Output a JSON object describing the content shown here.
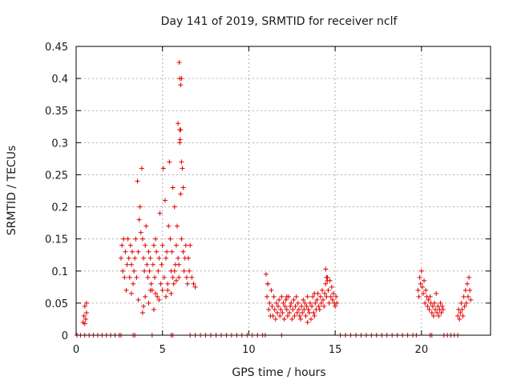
{
  "chart_data": {
    "type": "scatter",
    "title": "Day 141 of 2019, SRMTID for receiver nclf",
    "xlabel": "GPS time / hours",
    "ylabel": "SRMTID / TECUs",
    "xlim": [
      0,
      24
    ],
    "ylim": [
      0,
      0.45
    ],
    "xticks": [
      0,
      5,
      10,
      15,
      20
    ],
    "yticks": [
      0,
      0.05,
      0.1,
      0.15,
      0.2,
      0.25,
      0.3,
      0.35,
      0.4,
      0.45
    ],
    "xtick_labels": [
      "0",
      "5",
      "10",
      "15",
      "20"
    ],
    "ytick_labels": [
      "0",
      "0.05",
      "0.1",
      "0.15",
      "0.2",
      "0.25",
      "0.3",
      "0.35",
      "0.4",
      "0.45"
    ],
    "grid": true,
    "marker": "plus",
    "color": "#e00000",
    "series": [
      {
        "x": [
          0.4,
          0.45,
          0.5,
          0.5,
          0.55,
          0.6,
          0.6,
          2.6,
          2.65,
          2.7,
          2.75,
          2.8,
          2.85,
          2.9,
          2.95,
          3.0,
          3.05,
          3.1,
          3.15,
          3.2,
          3.25,
          3.3,
          3.35,
          3.4,
          3.45,
          3.5,
          3.55,
          3.6,
          3.65,
          3.7,
          3.75,
          3.8,
          3.85,
          3.9,
          3.95,
          4.0,
          4.05,
          4.1,
          4.15,
          4.2,
          4.25,
          4.3,
          4.35,
          4.4,
          4.45,
          4.5,
          4.55,
          4.6,
          4.65,
          4.7,
          4.75,
          4.8,
          4.85,
          4.9,
          4.95,
          5.0,
          5.05,
          5.1,
          5.15,
          5.2,
          5.25,
          5.3,
          5.35,
          5.4,
          5.45,
          5.5,
          5.55,
          5.6,
          5.65,
          5.7,
          5.75,
          5.8,
          5.85,
          5.9,
          5.95,
          6.0,
          6.05,
          6.1,
          6.15,
          6.2,
          6.25,
          6.3,
          6.35,
          6.4,
          6.45,
          6.5,
          6.55,
          6.6,
          6.7,
          6.8,
          6.9,
          3.2,
          3.6,
          3.85,
          3.9,
          4.0,
          4.2,
          4.3,
          4.5,
          4.6,
          4.8,
          5.0,
          5.2,
          5.3,
          5.5,
          5.6,
          5.7,
          5.8,
          5.95,
          6.0,
          6.05,
          6.1,
          6.2,
          5.97,
          6.0,
          6.05,
          6.1,
          5.9,
          6.02,
          11.0,
          11.05,
          11.1,
          11.15,
          11.2,
          11.25,
          11.3,
          11.35,
          11.4,
          11.45,
          11.5,
          11.55,
          11.6,
          11.65,
          11.7,
          11.75,
          11.8,
          11.85,
          11.9,
          11.95,
          12.0,
          12.05,
          12.1,
          12.15,
          12.2,
          12.25,
          12.3,
          12.35,
          12.4,
          12.45,
          12.5,
          12.55,
          12.6,
          12.65,
          12.7,
          12.75,
          12.8,
          12.85,
          12.9,
          12.95,
          13.0,
          13.05,
          13.1,
          13.15,
          13.2,
          13.25,
          13.3,
          13.35,
          13.4,
          13.45,
          13.5,
          13.55,
          13.6,
          13.65,
          13.7,
          13.75,
          13.8,
          13.85,
          13.9,
          13.95,
          14.0,
          14.05,
          14.1,
          14.15,
          14.2,
          14.25,
          14.3,
          14.35,
          14.4,
          14.45,
          14.5,
          14.55,
          14.6,
          14.65,
          14.7,
          14.75,
          14.8,
          14.85,
          14.9,
          14.95,
          15.0,
          15.05,
          15.1,
          14.45,
          14.5,
          14.55,
          13.8,
          13.4,
          12.2,
          11.1,
          19.8,
          19.85,
          19.9,
          19.95,
          20.0,
          20.05,
          20.1,
          20.15,
          20.2,
          20.25,
          20.3,
          20.35,
          20.4,
          20.45,
          20.5,
          20.55,
          20.6,
          20.65,
          20.7,
          20.75,
          20.8,
          20.85,
          20.9,
          20.95,
          21.0,
          21.05,
          21.1,
          21.15,
          21.2,
          21.25,
          22.1,
          22.15,
          22.2,
          22.25,
          22.3,
          22.35,
          22.4,
          22.45,
          22.5,
          22.55,
          22.6,
          22.65,
          22.7,
          22.75,
          22.8,
          22.85
        ],
        "y": [
          0.02,
          0.03,
          0.045,
          0.018,
          0.025,
          0.035,
          0.05,
          0.12,
          0.14,
          0.1,
          0.15,
          0.09,
          0.13,
          0.07,
          0.11,
          0.15,
          0.12,
          0.09,
          0.14,
          0.11,
          0.13,
          0.08,
          0.1,
          0.12,
          0.15,
          0.09,
          0.24,
          0.13,
          0.18,
          0.2,
          0.16,
          0.26,
          0.15,
          0.12,
          0.1,
          0.14,
          0.17,
          0.11,
          0.09,
          0.13,
          0.1,
          0.12,
          0.08,
          0.07,
          0.11,
          0.14,
          0.09,
          0.15,
          0.13,
          0.06,
          0.1,
          0.12,
          0.19,
          0.08,
          0.11,
          0.14,
          0.26,
          0.09,
          0.21,
          0.12,
          0.13,
          0.07,
          0.17,
          0.27,
          0.15,
          0.1,
          0.13,
          0.23,
          0.08,
          0.2,
          0.11,
          0.14,
          0.17,
          0.12,
          0.09,
          0.32,
          0.22,
          0.15,
          0.26,
          0.13,
          0.1,
          0.12,
          0.14,
          0.09,
          0.08,
          0.12,
          0.1,
          0.14,
          0.09,
          0.08,
          0.075,
          0.065,
          0.055,
          0.035,
          0.045,
          0.06,
          0.05,
          0.07,
          0.04,
          0.065,
          0.055,
          0.07,
          0.06,
          0.08,
          0.065,
          0.09,
          0.1,
          0.085,
          0.11,
          0.3,
          0.32,
          0.27,
          0.23,
          0.425,
          0.4,
          0.39,
          0.4,
          0.33,
          0.305,
          0.095,
          0.06,
          0.08,
          0.04,
          0.05,
          0.03,
          0.07,
          0.045,
          0.03,
          0.06,
          0.04,
          0.025,
          0.05,
          0.035,
          0.045,
          0.055,
          0.03,
          0.04,
          0.06,
          0.035,
          0.05,
          0.025,
          0.045,
          0.055,
          0.04,
          0.03,
          0.06,
          0.035,
          0.045,
          0.05,
          0.025,
          0.04,
          0.055,
          0.03,
          0.045,
          0.06,
          0.035,
          0.05,
          0.04,
          0.03,
          0.025,
          0.045,
          0.035,
          0.055,
          0.04,
          0.05,
          0.03,
          0.045,
          0.02,
          0.04,
          0.035,
          0.05,
          0.025,
          0.045,
          0.06,
          0.035,
          0.03,
          0.05,
          0.04,
          0.055,
          0.065,
          0.045,
          0.04,
          0.06,
          0.05,
          0.07,
          0.055,
          0.045,
          0.065,
          0.08,
          0.06,
          0.09,
          0.07,
          0.05,
          0.085,
          0.06,
          0.075,
          0.055,
          0.065,
          0.05,
          0.045,
          0.06,
          0.05,
          0.103,
          0.09,
          0.085,
          0.065,
          0.06,
          0.06,
          0.08,
          0.07,
          0.06,
          0.09,
          0.08,
          0.1,
          0.075,
          0.065,
          0.085,
          0.05,
          0.07,
          0.06,
          0.045,
          0.055,
          0.04,
          0.06,
          0.05,
          0.035,
          0.045,
          0.03,
          0.05,
          0.04,
          0.065,
          0.035,
          0.045,
          0.03,
          0.04,
          0.05,
          0.035,
          0.045,
          0.04,
          0.03,
          0.04,
          0.025,
          0.035,
          0.05,
          0.04,
          0.03,
          0.06,
          0.045,
          0.07,
          0.05,
          0.08,
          0.06,
          0.09,
          0.07,
          0.055
        ]
      },
      {
        "x": [
          0.05,
          0.25,
          0.5,
          0.75,
          1.0,
          1.25,
          1.5,
          1.75,
          2.0,
          2.25,
          2.5,
          2.6,
          3.3,
          3.4,
          4.4,
          5.5,
          5.6,
          6.6,
          6.9,
          7.2,
          7.5,
          7.8,
          8.1,
          8.4,
          8.7,
          9.0,
          9.3,
          9.6,
          9.9,
          10.2,
          10.5,
          10.8,
          10.95,
          11.9,
          15.3,
          15.6,
          15.9,
          16.2,
          16.5,
          16.8,
          17.1,
          17.4,
          17.7,
          18.0,
          18.3,
          18.6,
          18.9,
          19.2,
          19.5,
          19.7,
          20.5,
          20.6,
          21.3,
          21.5,
          21.7,
          21.9,
          22.1
        ],
        "y": [
          0,
          0,
          0,
          0,
          0,
          0,
          0,
          0,
          0,
          0,
          0,
          0,
          0,
          0,
          0,
          0,
          0,
          0,
          0,
          0,
          0,
          0,
          0,
          0,
          0,
          0,
          0,
          0,
          0,
          0,
          0,
          0,
          0,
          0,
          0,
          0,
          0,
          0,
          0,
          0,
          0,
          0,
          0,
          0,
          0,
          0,
          0,
          0,
          0,
          0,
          0,
          0,
          0,
          0,
          0,
          0,
          0
        ]
      }
    ]
  }
}
